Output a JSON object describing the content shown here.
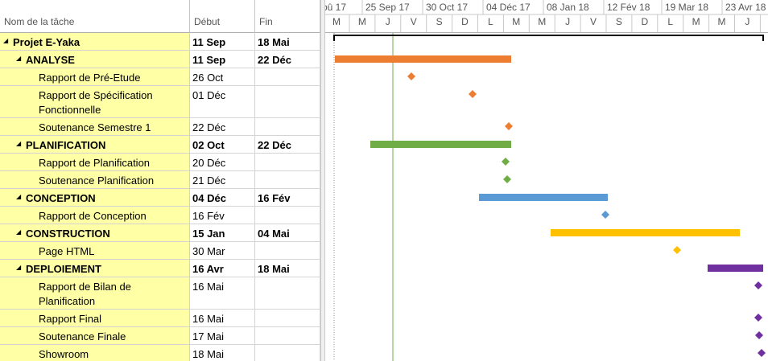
{
  "table": {
    "columns": [
      "Nom de la tâche",
      "Début",
      "Fin"
    ],
    "rows": [
      {
        "name": "Projet E-Yaka",
        "start": "11 Sep",
        "end": "18 Mai"
      },
      {
        "name": "ANALYSE",
        "start": "11 Sep",
        "end": "22 Déc"
      },
      {
        "name": "Rapport de Pré-Etude",
        "start": "26 Oct"
      },
      {
        "name": "Rapport de Spécification Fonctionnelle",
        "start": "01 Déc"
      },
      {
        "name": "Soutenance Semestre 1",
        "start": "22 Déc"
      },
      {
        "name": "PLANIFICATION",
        "start": "02 Oct",
        "end": "22 Déc"
      },
      {
        "name": "Rapport de Planification",
        "start": "20 Déc"
      },
      {
        "name": "Soutenance Planification",
        "start": "21 Déc"
      },
      {
        "name": "CONCEPTION",
        "start": "04 Déc",
        "end": "16 Fév"
      },
      {
        "name": "Rapport de Conception",
        "start": "16 Fév"
      },
      {
        "name": "CONSTRUCTION",
        "start": "15 Jan",
        "end": "04 Mai"
      },
      {
        "name": "Page HTML",
        "start": "30 Mar"
      },
      {
        "name": "DEPLOIEMENT",
        "start": "16 Avr",
        "end": "18 Mai"
      },
      {
        "name": "Rapport de Bilan de Planification",
        "start": "16 Mai"
      },
      {
        "name": "Rapport Final",
        "start": "16 Mai"
      },
      {
        "name": "Soutenance Finale",
        "start": "17 Mai"
      },
      {
        "name": "Showroom",
        "start": "18 Mai"
      }
    ]
  },
  "timescale": {
    "major": [
      "oû 17",
      "25 Sep 17",
      "30 Oct 17",
      "04 Déc 17",
      "08 Jan 18",
      "12 Fév 18",
      "19 Mar 18",
      "23 Avr 18"
    ],
    "minor": [
      "M",
      "M",
      "J",
      "V",
      "S",
      "D",
      "L",
      "M",
      "M",
      "J",
      "V",
      "S",
      "D",
      "L",
      "M",
      "M",
      "J"
    ]
  }
}
